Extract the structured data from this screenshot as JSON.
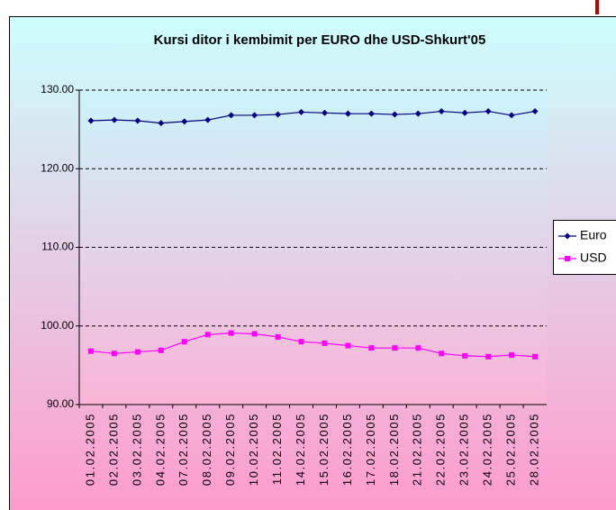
{
  "chart_data": {
    "type": "line",
    "title": "Kursi ditor i kembimit per EURO dhe USD-Shkurt'05",
    "categories": [
      "01.02.2005",
      "02.02.2005",
      "03.02.2005",
      "04.02.2005",
      "07.02.2005",
      "08.02.2005",
      "09.02.2005",
      "10.02.2005",
      "11.02.2005",
      "14.02.2005",
      "15.02.2005",
      "16.02.2005",
      "17.02.2005",
      "18.02.2005",
      "21.02.2005",
      "22.02.2005",
      "23.02.2005",
      "24.02.2005",
      "25.02.2005",
      "28.02.2005"
    ],
    "series": [
      {
        "name": "Euro",
        "color": "#000080",
        "marker": "diamond",
        "values": [
          126.1,
          126.2,
          126.1,
          125.8,
          126.0,
          126.2,
          126.8,
          126.8,
          126.9,
          127.2,
          127.1,
          127.0,
          127.0,
          126.9,
          127.0,
          127.3,
          127.1,
          127.3,
          126.8,
          127.3
        ]
      },
      {
        "name": "USD",
        "color": "#ff00ff",
        "marker": "square",
        "values": [
          96.8,
          96.5,
          96.7,
          96.9,
          98.0,
          98.9,
          99.1,
          99.0,
          98.6,
          98.0,
          97.8,
          97.5,
          97.2,
          97.2,
          97.2,
          96.5,
          96.2,
          96.1,
          96.3,
          96.1
        ]
      }
    ],
    "ylim": [
      90,
      130
    ],
    "yticks": [
      {
        "value": 90,
        "label": "90.00"
      },
      {
        "value": 100,
        "label": "100.00"
      },
      {
        "value": 110,
        "label": "110.00"
      },
      {
        "value": 120,
        "label": "120.00"
      },
      {
        "value": 130,
        "label": "130.00"
      }
    ],
    "grid": true,
    "legend": "right"
  }
}
